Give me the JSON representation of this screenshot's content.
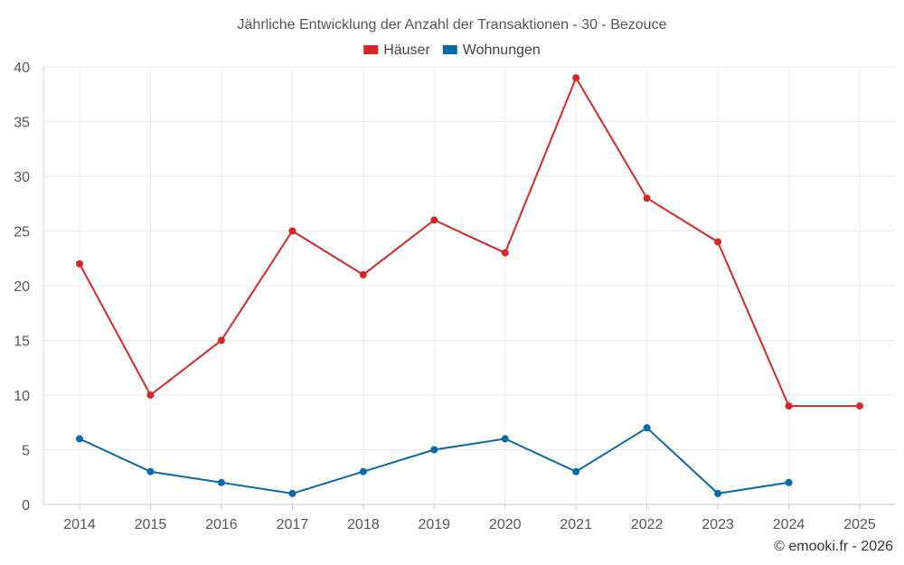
{
  "chart_data": {
    "type": "line",
    "title": "Jährliche Entwicklung der Anzahl der Transaktionen - 30 - Bezouce",
    "categories": [
      "2014",
      "2015",
      "2016",
      "2017",
      "2018",
      "2019",
      "2020",
      "2021",
      "2022",
      "2023",
      "2024",
      "2025"
    ],
    "series": [
      {
        "name": "Häuser",
        "color": "#d62728",
        "values": [
          22,
          10,
          15,
          25,
          21,
          26,
          23,
          39,
          28,
          24,
          9,
          9
        ]
      },
      {
        "name": "Wohnungen",
        "color": "#0868a8",
        "values": [
          6,
          3,
          2,
          1,
          3,
          5,
          6,
          3,
          7,
          1,
          2,
          null
        ]
      }
    ],
    "ylim": [
      0,
      40
    ],
    "yticks": [
      0,
      5,
      10,
      15,
      20,
      25,
      30,
      35,
      40
    ],
    "grid": true,
    "legend": "top-center",
    "xlabel": "",
    "ylabel": ""
  },
  "credit": "© emooki.fr - 2026"
}
